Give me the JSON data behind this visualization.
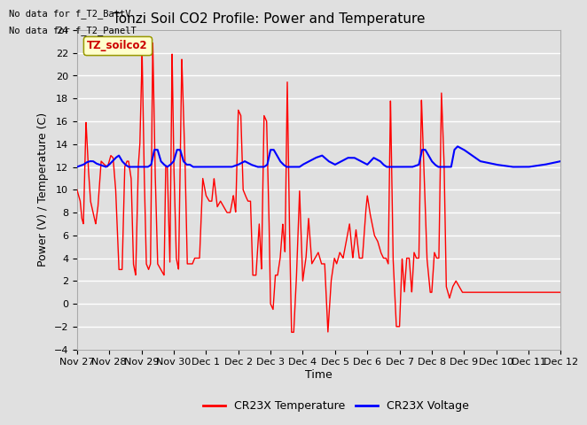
{
  "title": "Tonzi Soil CO2 Profile: Power and Temperature",
  "ylabel": "Power (V) / Temperature (C)",
  "xlabel": "Time",
  "ylim": [
    -4,
    24
  ],
  "yticks": [
    -4,
    -2,
    0,
    2,
    4,
    6,
    8,
    10,
    12,
    14,
    16,
    18,
    20,
    22,
    24
  ],
  "xtick_labels": [
    "Nov 27",
    "Nov 28",
    "Nov 29",
    "Nov 30",
    "Dec 1",
    "Dec 2",
    "Dec 3",
    "Dec 4",
    "Dec 5",
    "Dec 6",
    "Dec 7",
    "Dec 8",
    "Dec 9",
    "Dec 10",
    "Dec 11",
    "Dec 12"
  ],
  "no_data_text1": "No data for f_T2_BattV",
  "no_data_text2": "No data for f_T2_PanelT",
  "legend_label_box": "TZ_soilco2",
  "legend_label_red": "CR23X Temperature",
  "legend_label_blue": "CR23X Voltage",
  "red_color": "#FF0000",
  "blue_color": "#0000FF",
  "bg_color": "#E0E0E0",
  "grid_color": "#FFFFFF",
  "box_fill": "#FFFFCC",
  "box_edge": "#999900",
  "title_fontsize": 11,
  "axis_fontsize": 9,
  "tick_fontsize": 8
}
